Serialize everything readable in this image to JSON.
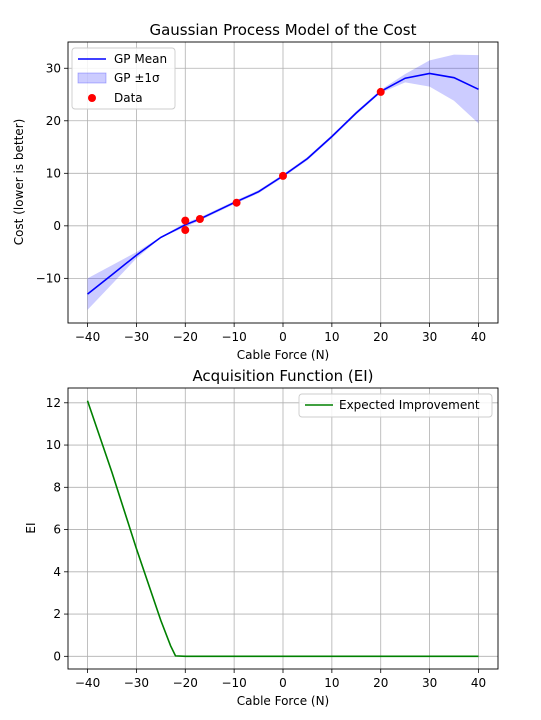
{
  "chart_data": [
    {
      "type": "line",
      "title": "Gaussian Process Model of the Cost",
      "xlabel": "Cable Force (N)",
      "ylabel": "Cost (lower is better)",
      "xlim": [
        -44,
        44
      ],
      "ylim": [
        -18.5,
        35
      ],
      "xticks": [
        -40,
        -30,
        -20,
        -10,
        0,
        10,
        20,
        30,
        40
      ],
      "yticks": [
        -10,
        0,
        10,
        20,
        30
      ],
      "grid": true,
      "legend_position": "upper-left",
      "legend": [
        "GP Mean",
        "GP ±1σ",
        "Data"
      ],
      "colors": {
        "mean": "#0000ff",
        "band": "#0000ff",
        "data": "#ff0000"
      },
      "series": [
        {
          "name": "GP Mean",
          "x": [
            -40,
            -35,
            -30,
            -25,
            -20,
            -17,
            -15,
            -10,
            -5,
            0,
            5,
            10,
            15,
            20,
            25,
            30,
            35,
            40
          ],
          "y": [
            -13,
            -9.3,
            -5.6,
            -2.2,
            0.2,
            1.3,
            2.2,
            4.4,
            6.5,
            9.5,
            12.8,
            17.0,
            21.5,
            25.6,
            28.1,
            29.0,
            28.2,
            26.0
          ]
        },
        {
          "name": "GP ±1σ",
          "x": [
            -40,
            -35,
            -30,
            -25,
            -20,
            -17,
            -15,
            -10,
            -5,
            0,
            5,
            10,
            15,
            20,
            25,
            30,
            35,
            40
          ],
          "upper": [
            -10.0,
            -7.5,
            -5.0,
            -2.1,
            0.6,
            1.6,
            2.5,
            4.7,
            6.8,
            9.8,
            13.1,
            17.3,
            21.8,
            25.9,
            28.9,
            31.5,
            32.6,
            32.5
          ],
          "lower": [
            -16.0,
            -11.1,
            -6.2,
            -2.3,
            -0.2,
            1.0,
            1.9,
            4.1,
            6.2,
            9.2,
            12.5,
            16.7,
            21.2,
            25.3,
            27.3,
            26.5,
            23.8,
            19.5
          ]
        },
        {
          "name": "Data",
          "type": "scatter",
          "x": [
            -20,
            -20,
            -17,
            -9.5,
            0,
            20
          ],
          "y": [
            1.0,
            -0.8,
            1.3,
            4.4,
            9.5,
            25.5
          ]
        }
      ]
    },
    {
      "type": "line",
      "title": "Acquisition Function (EI)",
      "xlabel": "Cable Force (N)",
      "ylabel": "EI",
      "xlim": [
        -44,
        44
      ],
      "ylim": [
        -0.6,
        12.7
      ],
      "xticks": [
        -40,
        -30,
        -20,
        -10,
        0,
        10,
        20,
        30,
        40
      ],
      "yticks": [
        0,
        2,
        4,
        6,
        8,
        10,
        12
      ],
      "grid": true,
      "legend_position": "upper-right",
      "legend": [
        "Expected Improvement"
      ],
      "colors": {
        "ei": "#008000"
      },
      "series": [
        {
          "name": "Expected Improvement",
          "x": [
            -40,
            -35,
            -30,
            -25,
            -23,
            -22,
            -20,
            0,
            20,
            40
          ],
          "y": [
            12.1,
            8.7,
            5.1,
            1.7,
            0.5,
            0.02,
            0,
            0,
            0,
            0
          ]
        }
      ]
    }
  ]
}
